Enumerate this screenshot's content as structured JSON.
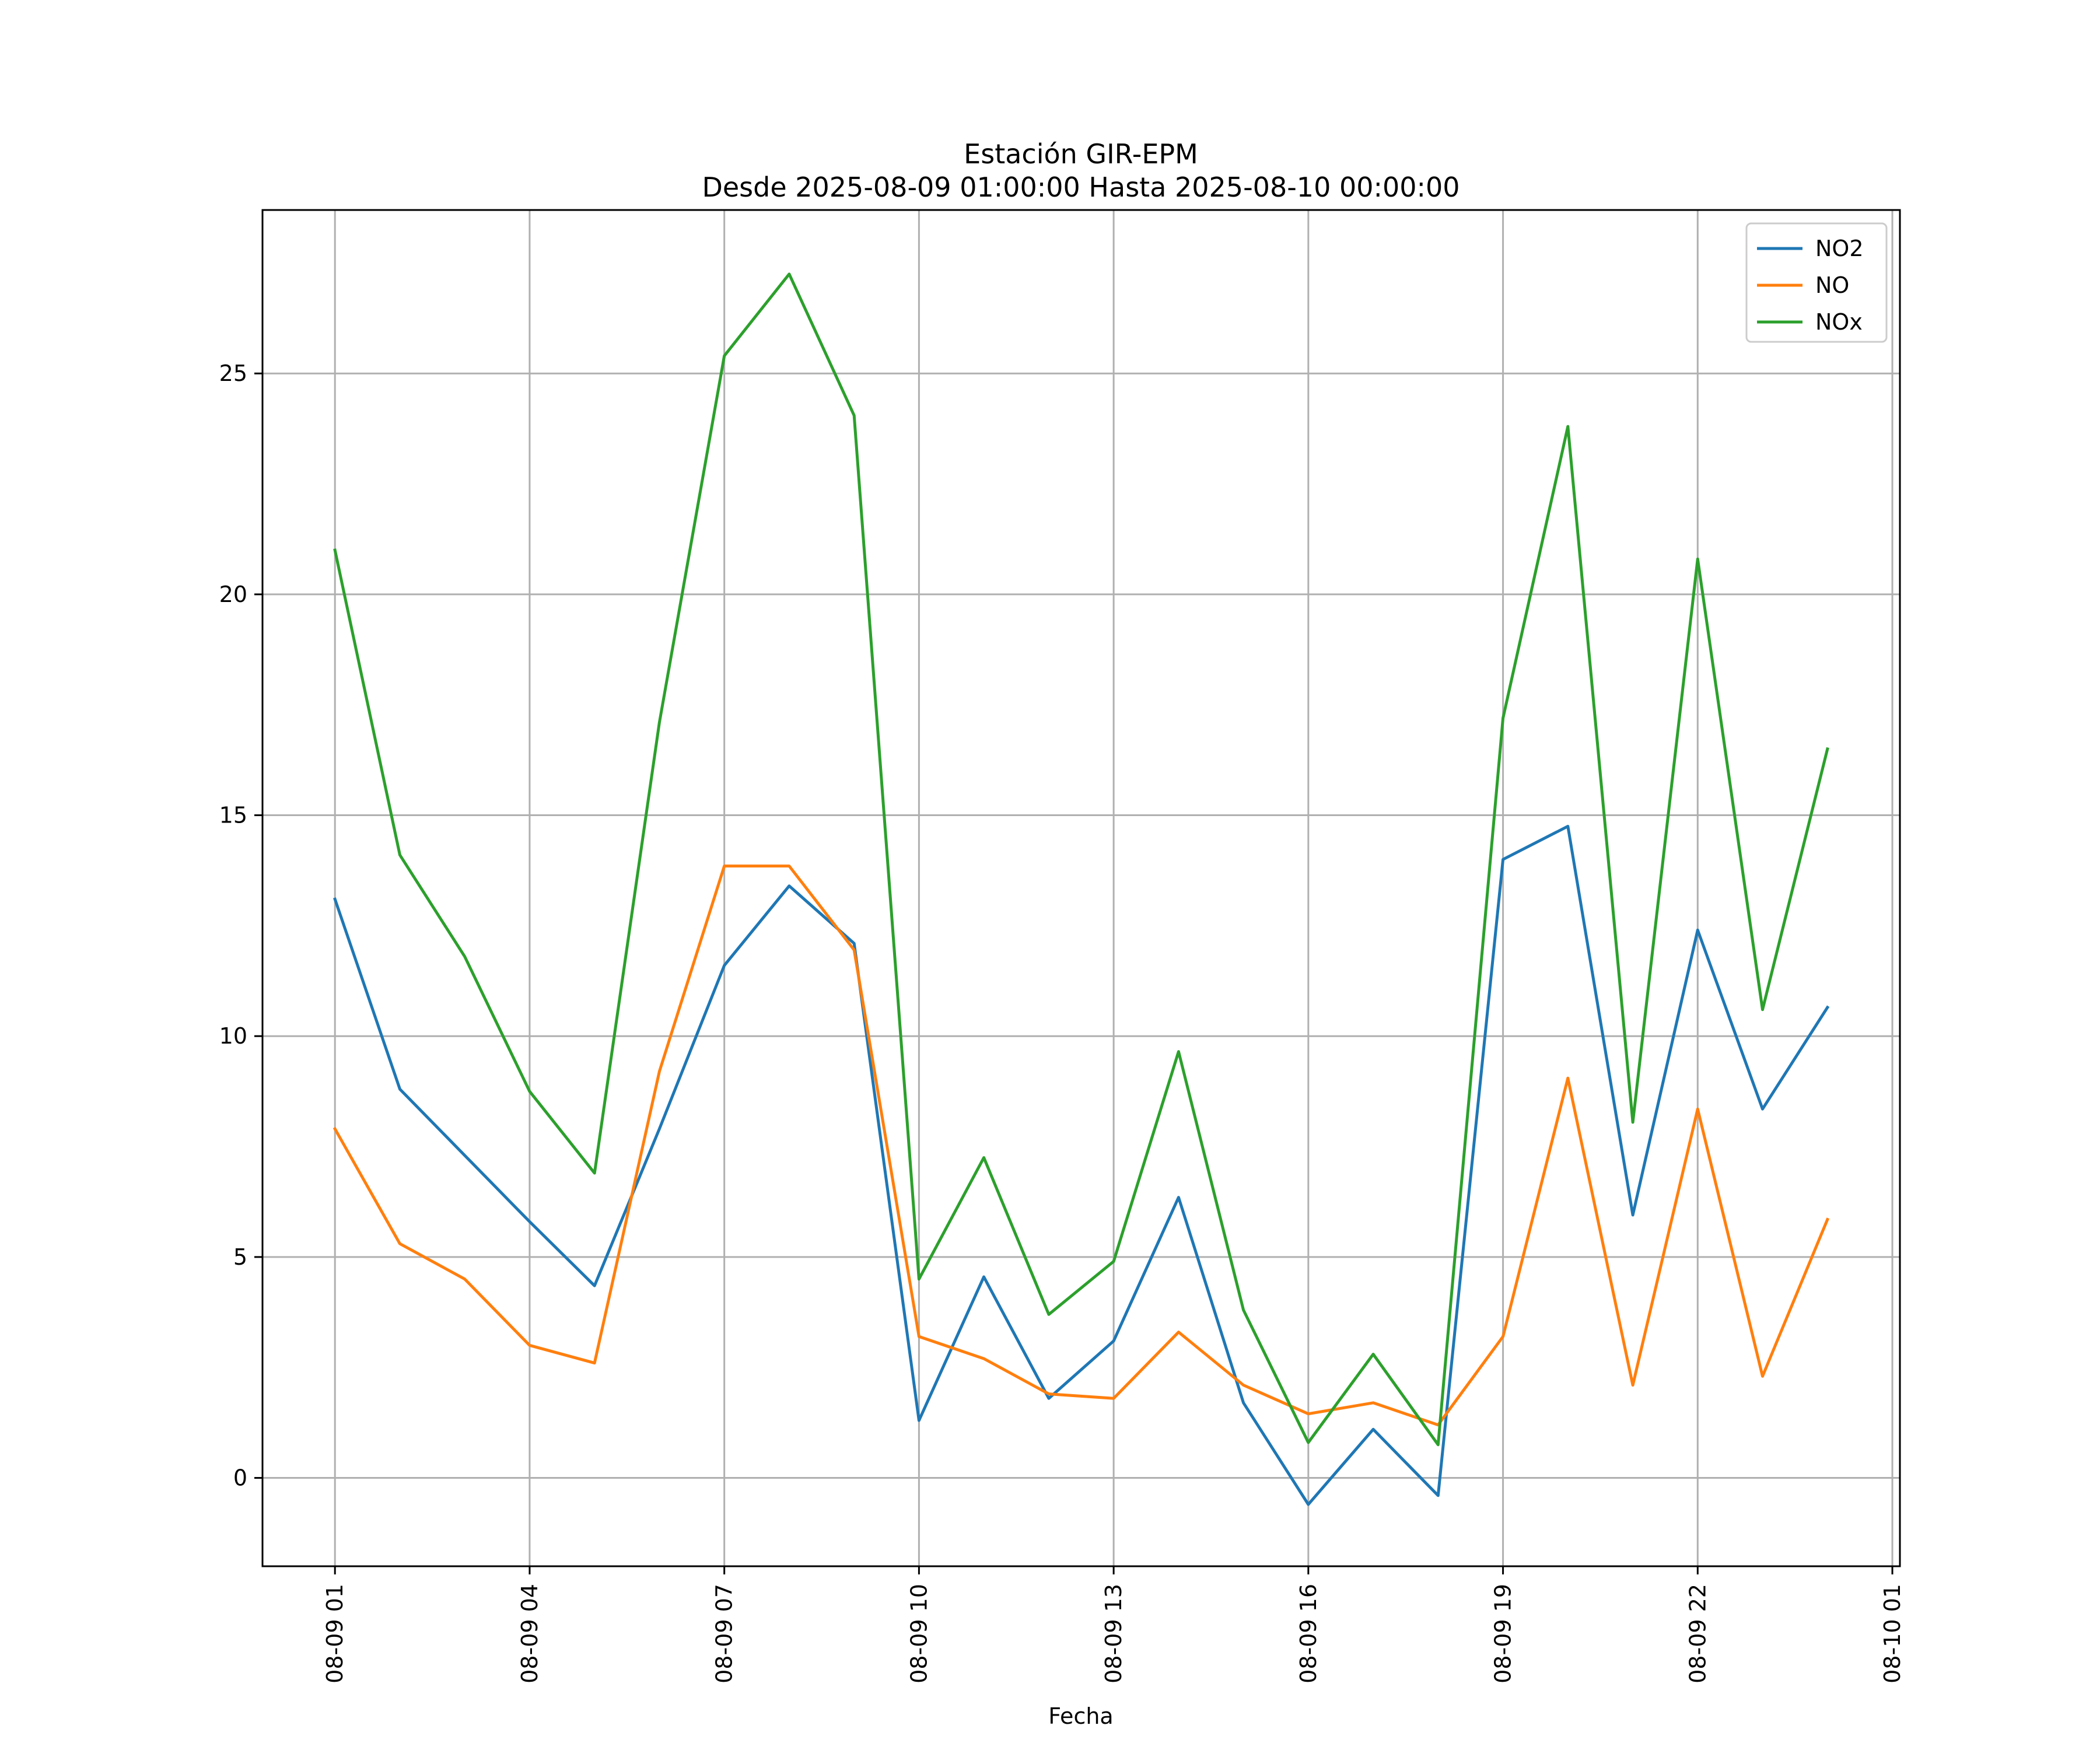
{
  "chart_data": {
    "type": "line",
    "title": "Estación GIR-EPM",
    "subtitle": "Desde 2025-08-09 01:00:00 Hasta 2025-08-10 00:00:00",
    "xlabel": "Fecha",
    "ylabel": "",
    "grid": true,
    "legend_position": "top-right",
    "x": [
      "2025-08-09 01:00",
      "2025-08-09 02:00",
      "2025-08-09 03:00",
      "2025-08-09 04:00",
      "2025-08-09 05:00",
      "2025-08-09 06:00",
      "2025-08-09 07:00",
      "2025-08-09 08:00",
      "2025-08-09 09:00",
      "2025-08-09 10:00",
      "2025-08-09 11:00",
      "2025-08-09 12:00",
      "2025-08-09 13:00",
      "2025-08-09 14:00",
      "2025-08-09 15:00",
      "2025-08-09 16:00",
      "2025-08-09 17:00",
      "2025-08-09 18:00",
      "2025-08-09 19:00",
      "2025-08-09 20:00",
      "2025-08-09 21:00",
      "2025-08-09 22:00",
      "2025-08-09 23:00",
      "2025-08-10 00:00"
    ],
    "xlim": [
      "2025-08-08 23:53",
      "2025-08-10 01:07"
    ],
    "ylim": [
      -2.0,
      28.7
    ],
    "x_ticks": [
      "2025-08-09 01:00",
      "2025-08-09 04:00",
      "2025-08-09 07:00",
      "2025-08-09 10:00",
      "2025-08-09 13:00",
      "2025-08-09 16:00",
      "2025-08-09 19:00",
      "2025-08-09 22:00",
      "2025-08-10 01:00"
    ],
    "x_tick_labels": [
      "08-09 01",
      "08-09 04",
      "08-09 07",
      "08-09 10",
      "08-09 13",
      "08-09 16",
      "08-09 19",
      "08-09 22",
      "08-10 01"
    ],
    "y_ticks": [
      0,
      5,
      10,
      15,
      20,
      25
    ],
    "y_tick_labels": [
      "0",
      "5",
      "10",
      "15",
      "20",
      "25"
    ],
    "series": [
      {
        "name": "NO2",
        "color": "#1f77b4",
        "values": [
          13.1,
          8.8,
          7.3,
          5.8,
          4.35,
          7.9,
          11.6,
          13.4,
          12.1,
          1.3,
          4.55,
          1.8,
          3.1,
          6.35,
          1.7,
          -0.6,
          1.1,
          -0.4,
          14.0,
          14.75,
          5.95,
          12.4,
          8.35,
          10.65
        ]
      },
      {
        "name": "NO",
        "color": "#ff7f0e",
        "values": [
          7.9,
          5.3,
          4.5,
          3.0,
          2.6,
          9.2,
          13.85,
          13.85,
          11.95,
          3.2,
          2.7,
          1.9,
          1.8,
          3.3,
          2.1,
          1.45,
          1.7,
          1.2,
          3.2,
          9.05,
          2.1,
          8.35,
          2.3,
          5.85
        ]
      },
      {
        "name": "NOx",
        "color": "#2ca02c",
        "values": [
          21.0,
          14.1,
          11.8,
          8.75,
          6.9,
          17.1,
          25.4,
          27.25,
          24.05,
          4.5,
          7.25,
          3.7,
          4.9,
          9.65,
          3.8,
          0.8,
          2.8,
          0.75,
          17.2,
          23.8,
          8.05,
          20.8,
          10.6,
          16.5
        ]
      }
    ]
  }
}
